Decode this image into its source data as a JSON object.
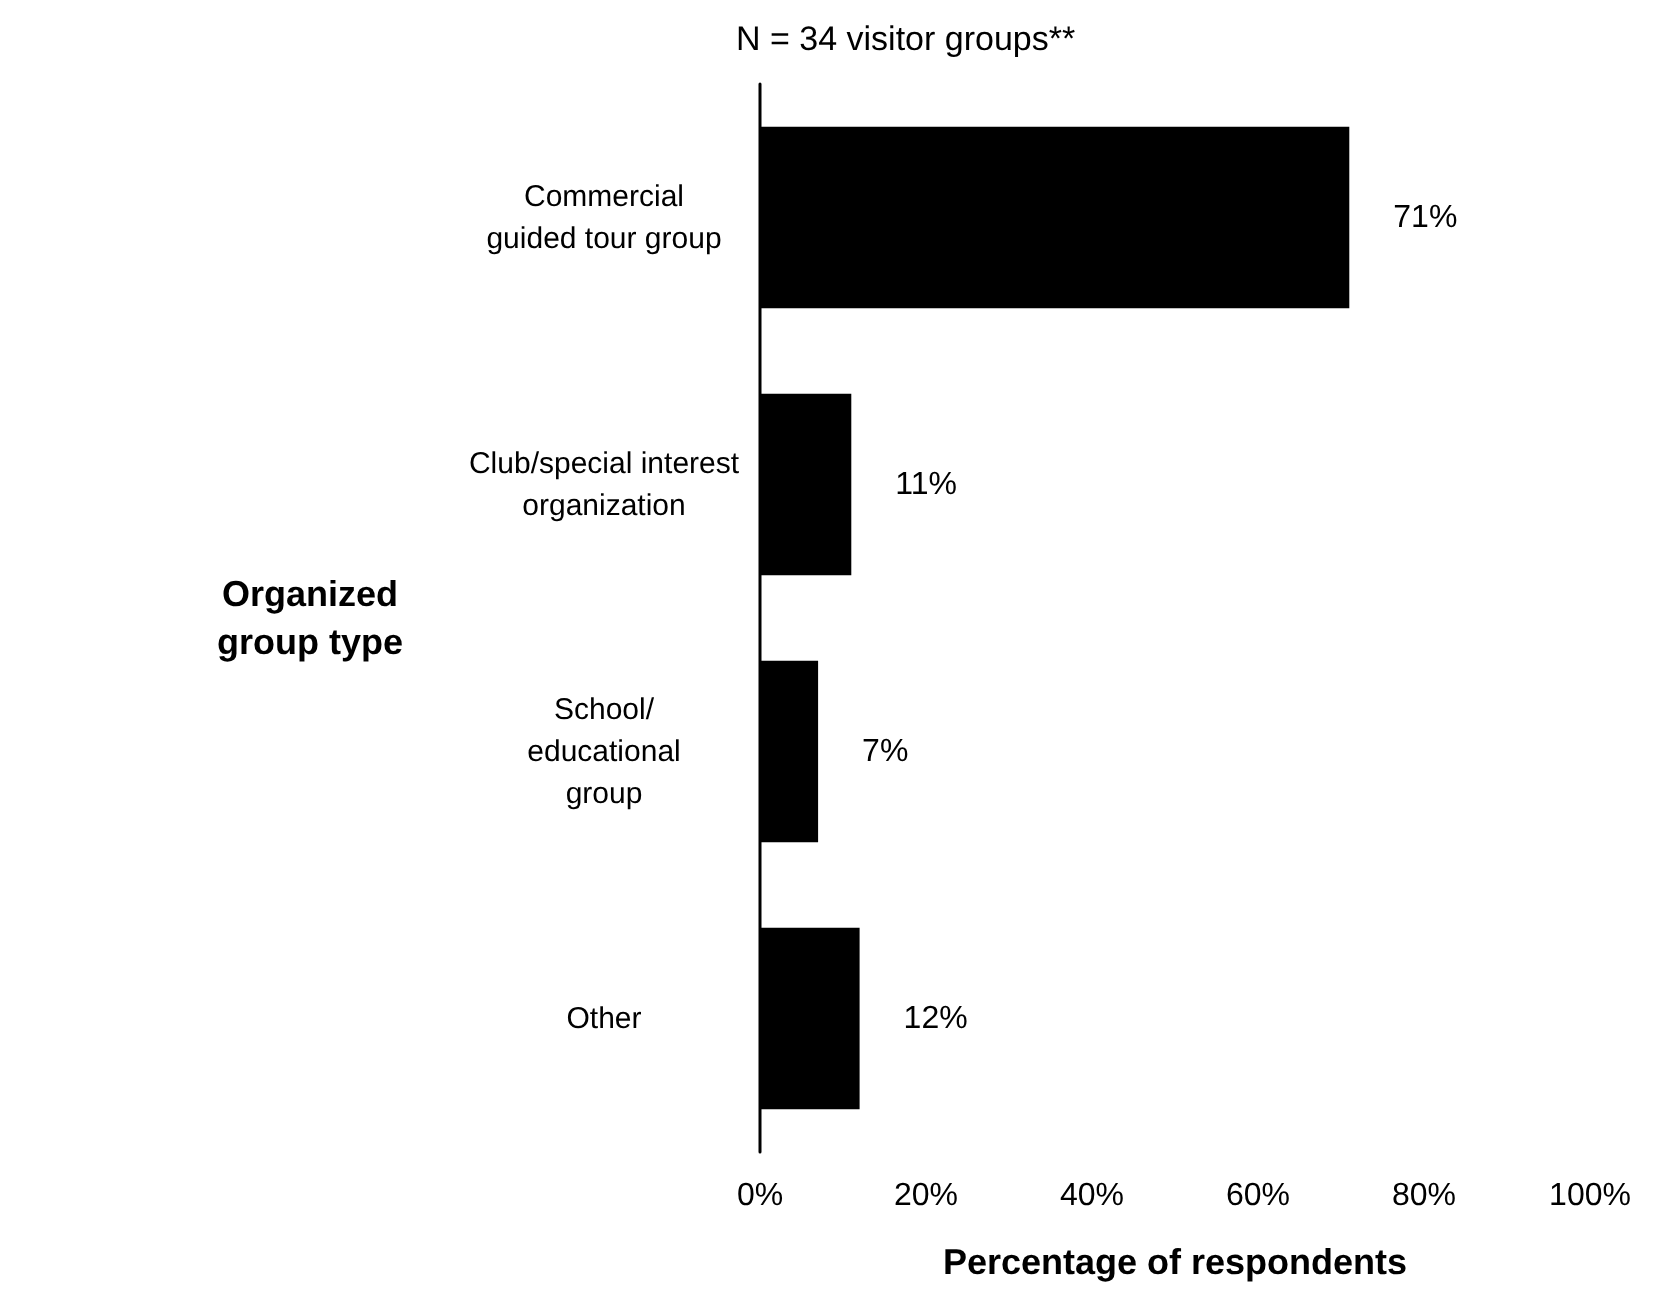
{
  "chart_data": {
    "type": "bar",
    "orientation": "horizontal",
    "title": "N = 34 visitor groups**",
    "xlabel": "Percentage of respondents",
    "ylabel": "Organized group type",
    "categories": [
      "Commercial\nguided tour group",
      "Club/special interest\norganization",
      "School/\neducational\ngroup",
      "Other"
    ],
    "values": [
      71,
      11,
      7,
      12
    ],
    "value_labels": [
      "71%",
      "11%",
      "7%",
      "12%"
    ],
    "color": "#000000",
    "xlim": [
      0,
      100
    ],
    "xticks": [
      {
        "value": 0,
        "label": "0%"
      },
      {
        "value": 20,
        "label": "20%"
      },
      {
        "value": 40,
        "label": "40%"
      },
      {
        "value": 60,
        "label": "60%"
      },
      {
        "value": 80,
        "label": "80%"
      },
      {
        "value": 100,
        "label": "100%"
      }
    ],
    "grid": false
  }
}
